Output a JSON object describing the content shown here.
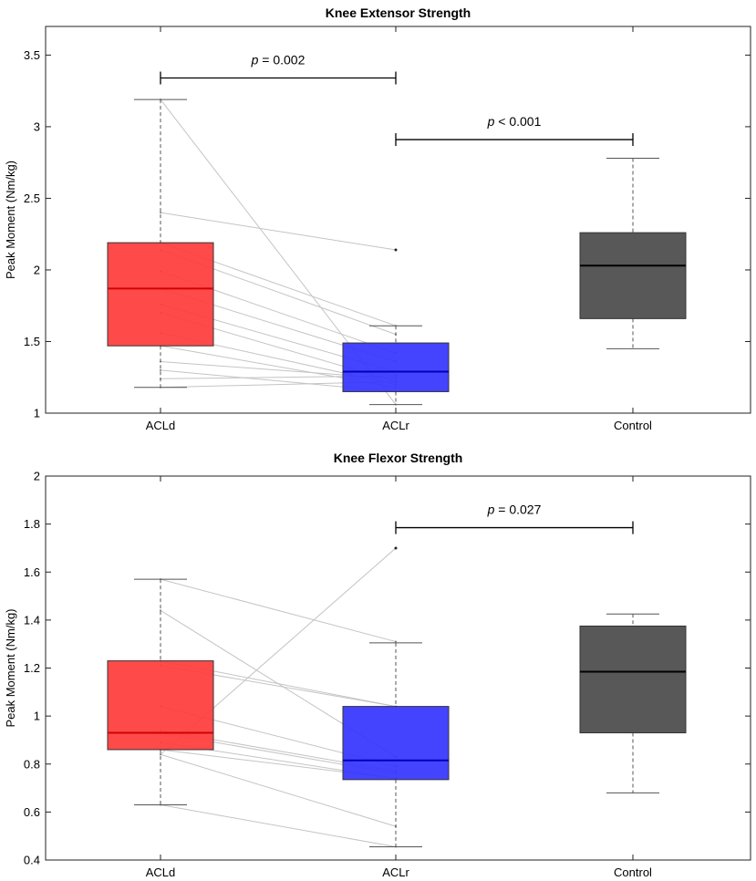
{
  "colors": {
    "ACLd": "#ff3b3b",
    "ACLd_median": "#d40000",
    "ACLr": "#3434ff",
    "ACLr_median": "#0000b8",
    "Control": "#4a4a4a",
    "Control_median": "#000000",
    "paired_line": "#c4c4c4"
  },
  "chart_data": [
    {
      "type": "box",
      "title": "Knee Extensor Strength",
      "ylabel": "Peak Moment (Nm/kg)",
      "xlabel": "",
      "categories": [
        "ACLd",
        "ACLr",
        "Control"
      ],
      "ylim": [
        1,
        3.7
      ],
      "yticks": [
        1,
        1.5,
        2,
        2.5,
        3,
        3.5
      ],
      "yticklabels": [
        "1",
        "1.5",
        "2",
        "2.5",
        "3",
        "3.5"
      ],
      "boxes": [
        {
          "group": "ACLd",
          "whisker_low": 1.18,
          "q1": 1.47,
          "median": 1.87,
          "q3": 2.19,
          "whisker_high": 3.19
        },
        {
          "group": "ACLr",
          "whisker_low": 1.06,
          "q1": 1.15,
          "median": 1.29,
          "q3": 1.49,
          "whisker_high": 1.61
        },
        {
          "group": "Control",
          "whisker_low": 1.45,
          "q1": 1.66,
          "median": 2.03,
          "q3": 2.26,
          "whisker_high": 2.78
        }
      ],
      "paired": [
        [
          3.19,
          1.06
        ],
        [
          2.4,
          2.14
        ],
        [
          2.19,
          1.61
        ],
        [
          2.14,
          1.55
        ],
        [
          1.99,
          1.42
        ],
        [
          1.87,
          1.36
        ],
        [
          1.76,
          1.29
        ],
        [
          1.7,
          1.22
        ],
        [
          1.56,
          1.2
        ],
        [
          1.47,
          1.18
        ],
        [
          1.36,
          1.24
        ],
        [
          1.24,
          1.26
        ],
        [
          1.18,
          1.22
        ],
        [
          1.3,
          1.15
        ]
      ],
      "outliers": [
        {
          "group": "ACLr",
          "value": 2.14
        }
      ],
      "comparisons": [
        {
          "from": "ACLd",
          "to": "ACLr",
          "y": 3.34,
          "p_symbol": "p",
          "p_text": " = 0.002"
        },
        {
          "from": "ACLr",
          "to": "Control",
          "y": 2.91,
          "p_symbol": "p",
          "p_text": " < 0.001"
        }
      ]
    },
    {
      "type": "box",
      "title": "Knee Flexor Strength",
      "ylabel": "Peak Moment (Nm/kg)",
      "xlabel": "",
      "categories": [
        "ACLd",
        "ACLr",
        "Control"
      ],
      "ylim": [
        0.4,
        2
      ],
      "yticks": [
        0.4,
        0.6,
        0.8,
        1,
        1.2,
        1.4,
        1.6,
        1.8,
        2
      ],
      "yticklabels": [
        "0.4",
        "0.6",
        "0.8",
        "1",
        "1.2",
        "1.4",
        "1.6",
        "1.8",
        "2"
      ],
      "boxes": [
        {
          "group": "ACLd",
          "whisker_low": 0.63,
          "q1": 0.86,
          "median": 0.93,
          "q3": 1.23,
          "whisker_high": 1.57
        },
        {
          "group": "ACLr",
          "whisker_low": 0.455,
          "q1": 0.735,
          "median": 0.815,
          "q3": 1.04,
          "whisker_high": 1.305
        },
        {
          "group": "Control",
          "whisker_low": 0.68,
          "q1": 0.93,
          "median": 1.185,
          "q3": 1.375,
          "whisker_high": 1.425
        }
      ],
      "paired": [
        [
          1.57,
          1.31
        ],
        [
          1.44,
          0.83
        ],
        [
          1.23,
          1.04
        ],
        [
          1.21,
          1.04
        ],
        [
          1.04,
          0.79
        ],
        [
          0.94,
          0.77
        ],
        [
          0.93,
          0.76
        ],
        [
          0.89,
          0.74
        ],
        [
          0.86,
          0.74
        ],
        [
          0.84,
          1.7
        ],
        [
          0.84,
          0.54
        ],
        [
          0.63,
          0.455
        ]
      ],
      "outliers": [
        {
          "group": "ACLr",
          "value": 1.7
        }
      ],
      "comparisons": [
        {
          "from": "ACLr",
          "to": "Control",
          "y": 1.785,
          "p_symbol": "p",
          "p_text": " = 0.027"
        }
      ]
    }
  ]
}
